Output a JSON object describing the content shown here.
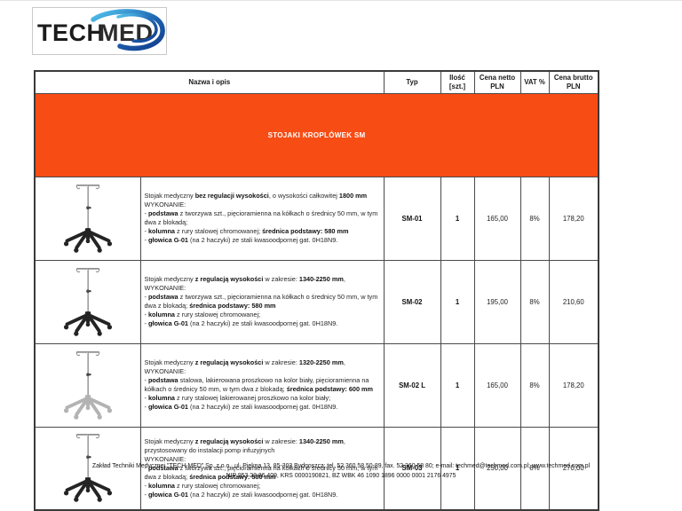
{
  "logo": {
    "tech": "TECH",
    "med": "MED"
  },
  "table": {
    "headers": {
      "name": "Nazwa i opis",
      "type": "Typ",
      "qty": "Ilość\n[szt.]",
      "net": "Cena netto\nPLN",
      "vat": "VAT %",
      "gross": "Cena brutto\nPLN"
    },
    "section_title": "STOJAKI KROPLÓWEK SM",
    "rows": [
      {
        "image": "iv-stand-black-base",
        "image_variant": "dark",
        "description": [
          [
            {
              "t": "Stojak medyczny ",
              "b": false
            },
            {
              "t": "bez regulacji wysokości",
              "b": true
            },
            {
              "t": ", o wysokości całkowitej ",
              "b": false
            },
            {
              "t": "1800 mm",
              "b": true
            }
          ],
          [
            {
              "t": "WYKONANIE:",
              "b": false
            }
          ],
          [
            {
              "t": "- ",
              "b": false
            },
            {
              "t": "podstawa",
              "b": true
            },
            {
              "t": " z tworzywa szt., pięcioramienna na kółkach o średnicy 50 mm, w tym dwa z blokadą;",
              "b": false
            }
          ],
          [
            {
              "t": "- ",
              "b": false
            },
            {
              "t": "kolumna",
              "b": true
            },
            {
              "t": " z rury stalowej chromowanej; ",
              "b": false
            },
            {
              "t": "średnica podstawy: 580 mm",
              "b": true
            }
          ],
          [
            {
              "t": "- ",
              "b": false
            },
            {
              "t": "głowica G-01",
              "b": true
            },
            {
              "t": " (na 2 haczyki) ze stali kwasoodpornej gat. 0H18N9.",
              "b": false
            }
          ]
        ],
        "type": "SM-01",
        "qty": "1",
        "net": "165,00",
        "vat": "8%",
        "gross": "178,20"
      },
      {
        "image": "iv-stand-black-base",
        "image_variant": "dark",
        "description": [
          [
            {
              "t": "Stojak medyczny ",
              "b": false
            },
            {
              "t": "z regulacją wysokości",
              "b": true
            },
            {
              "t": " w zakresie: ",
              "b": false
            },
            {
              "t": "1340-2250 mm",
              "b": true
            },
            {
              "t": ",",
              "b": false
            }
          ],
          [
            {
              "t": "WYKONANIE:",
              "b": false
            }
          ],
          [
            {
              "t": "- ",
              "b": false
            },
            {
              "t": "podstawa",
              "b": true
            },
            {
              "t": " z tworzywa szt., pięcioramienna na kółkach o średnicy 50 mm, w tym dwa z blokadą; ",
              "b": false
            },
            {
              "t": "średnica podstawy: 580 mm",
              "b": true
            }
          ],
          [
            {
              "t": "- ",
              "b": false
            },
            {
              "t": "kolumna",
              "b": true
            },
            {
              "t": " z rury stalowej chromowanej;",
              "b": false
            }
          ],
          [
            {
              "t": "- ",
              "b": false
            },
            {
              "t": "głowica G-01",
              "b": true
            },
            {
              "t": " (na 2 haczyki) ze stali kwasoodpornej gat. 0H18N9.",
              "b": false
            }
          ]
        ],
        "type": "SM-02",
        "qty": "1",
        "net": "195,00",
        "vat": "8%",
        "gross": "210,60"
      },
      {
        "image": "iv-stand-white-base",
        "image_variant": "light",
        "description": [
          [
            {
              "t": "Stojak medyczny ",
              "b": false
            },
            {
              "t": "z regulacją wysokości",
              "b": true
            },
            {
              "t": " w zakresie: ",
              "b": false
            },
            {
              "t": "1320-2250 mm",
              "b": true
            },
            {
              "t": ",",
              "b": false
            }
          ],
          [
            {
              "t": "WYKONANIE:",
              "b": false
            }
          ],
          [
            {
              "t": "- ",
              "b": false
            },
            {
              "t": "podstawa",
              "b": true
            },
            {
              "t": " stalowa, lakierowana proszkowo na kolor biały, pięcioramienna na kółkach o średnicy 50 mm, w tym dwa z blokadą; ",
              "b": false
            },
            {
              "t": "średnica podstawy: 600 mm",
              "b": true
            }
          ],
          [
            {
              "t": "- ",
              "b": false
            },
            {
              "t": "kolumna",
              "b": true
            },
            {
              "t": " z rury stalowej lakierowanej proszkowo na kolor biały;",
              "b": false
            }
          ],
          [
            {
              "t": "- ",
              "b": false
            },
            {
              "t": "głowica G-01",
              "b": true
            },
            {
              "t": " (na 2 haczyki) ze stali kwasoodpornej gat. 0H18N9.",
              "b": false
            }
          ]
        ],
        "type": "SM-02 L",
        "qty": "1",
        "net": "165,00",
        "vat": "8%",
        "gross": "178,20"
      },
      {
        "image": "iv-stand-black-base",
        "image_variant": "dark",
        "description": [
          [
            {
              "t": "Stojak medyczny ",
              "b": false
            },
            {
              "t": "z regulacją wysokości",
              "b": true
            },
            {
              "t": " w zakresie: ",
              "b": false
            },
            {
              "t": "1340-2250 mm",
              "b": true
            },
            {
              "t": ",",
              "b": false
            }
          ],
          [
            {
              "t": "przystosowany do instalacji pomp infuzyjnych",
              "b": false
            }
          ],
          [
            {
              "t": "WYKONANIE:",
              "b": false
            }
          ],
          [
            {
              "t": "- ",
              "b": false
            },
            {
              "t": "podstawa",
              "b": true
            },
            {
              "t": " z tworzywa szt., pięcioramienna na kółkach o średnicy 50 mm, w tym dwa z blokadą; ",
              "b": false
            },
            {
              "t": "średnica podstawy: 580 mm",
              "b": true
            }
          ],
          [
            {
              "t": "- ",
              "b": false
            },
            {
              "t": "kolumna",
              "b": true
            },
            {
              "t": " z rury stalowej chromowanej;",
              "b": false
            }
          ],
          [
            {
              "t": "- ",
              "b": false
            },
            {
              "t": "głowica G-01",
              "b": true
            },
            {
              "t": " (na 2 haczyki) ze stali kwasoodpornej gat. 0H18N9.",
              "b": false
            }
          ]
        ],
        "type": "SM-03",
        "qty": "1",
        "net": "250,00",
        "vat": "8%",
        "gross": "270,00"
      }
    ]
  },
  "footer": {
    "line1": "Zakład Techniki Medycznej \"TECH-MED\" Sp. z o.o., ul. Piękna 13, 85-303 Bydgoszcz; tel. 52 360 58 50-89, fax. 52 360 58 80; e-mail: techmed@techmed.com.pl; www.techmed.com.pl",
    "line2": "NIP 953 22 86 409, KRS 0000190821, BZ WBK 46 1090 1896 0000 0001 2176 4975"
  },
  "colors": {
    "accent_orange": "#F84C15",
    "logo_blue_light": "#53C4EE",
    "logo_blue_dark": "#123C8C",
    "stand_dark": "#242424",
    "stand_light": "#b3b3b3"
  }
}
